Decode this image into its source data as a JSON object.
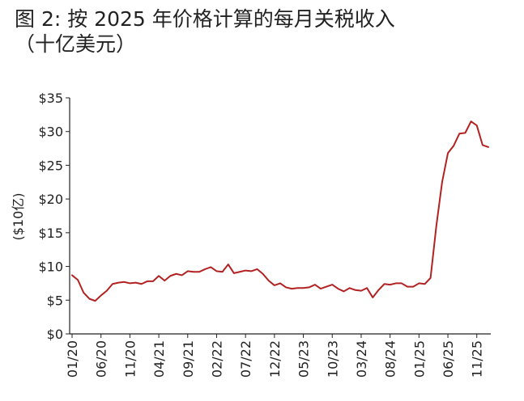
{
  "title_line1": "图 2:  按 2025 年价格计算的每月关税收入",
  "title_line2": "（十亿美元）",
  "chart_data": {
    "type": "line",
    "ylabel": "($10亿)",
    "ylim": [
      0,
      35
    ],
    "yticks": [
      "$0",
      "$5",
      "$10",
      "$15",
      "$20",
      "$25",
      "$30",
      "$35"
    ],
    "ytick_values": [
      0,
      5,
      10,
      15,
      20,
      25,
      30,
      35
    ],
    "xticks": [
      "01/20",
      "06/20",
      "11/20",
      "04/21",
      "09/21",
      "02/22",
      "07/22",
      "12/22",
      "05/23",
      "10/23",
      "03/24",
      "08/24",
      "01/25",
      "06/25",
      "11/25"
    ],
    "grid": false,
    "line_color": "#b22222",
    "series": [
      {
        "values": [
          8.7,
          8.0,
          6.1,
          5.2,
          4.9,
          5.7,
          6.4,
          7.4,
          7.6,
          7.7,
          7.5,
          7.6,
          7.4,
          7.8,
          7.8,
          8.6,
          7.9,
          8.6,
          8.9,
          8.7,
          9.3,
          9.2,
          9.2,
          9.6,
          9.9,
          9.3,
          9.2,
          10.3,
          9.0,
          9.2,
          9.4,
          9.3,
          9.6,
          8.9,
          7.9,
          7.2,
          7.5,
          6.9,
          6.7,
          6.8,
          6.8,
          6.9,
          7.3,
          6.7,
          7.0,
          7.3,
          6.7,
          6.3,
          6.8,
          6.5,
          6.4,
          6.8,
          5.4,
          6.5,
          7.4,
          7.3,
          7.5,
          7.5,
          7.0,
          7.0,
          7.5,
          7.4,
          8.3,
          16.0,
          22.5,
          26.8,
          27.9,
          29.7,
          29.8,
          31.5,
          30.9,
          28.0,
          27.7
        ]
      }
    ]
  }
}
